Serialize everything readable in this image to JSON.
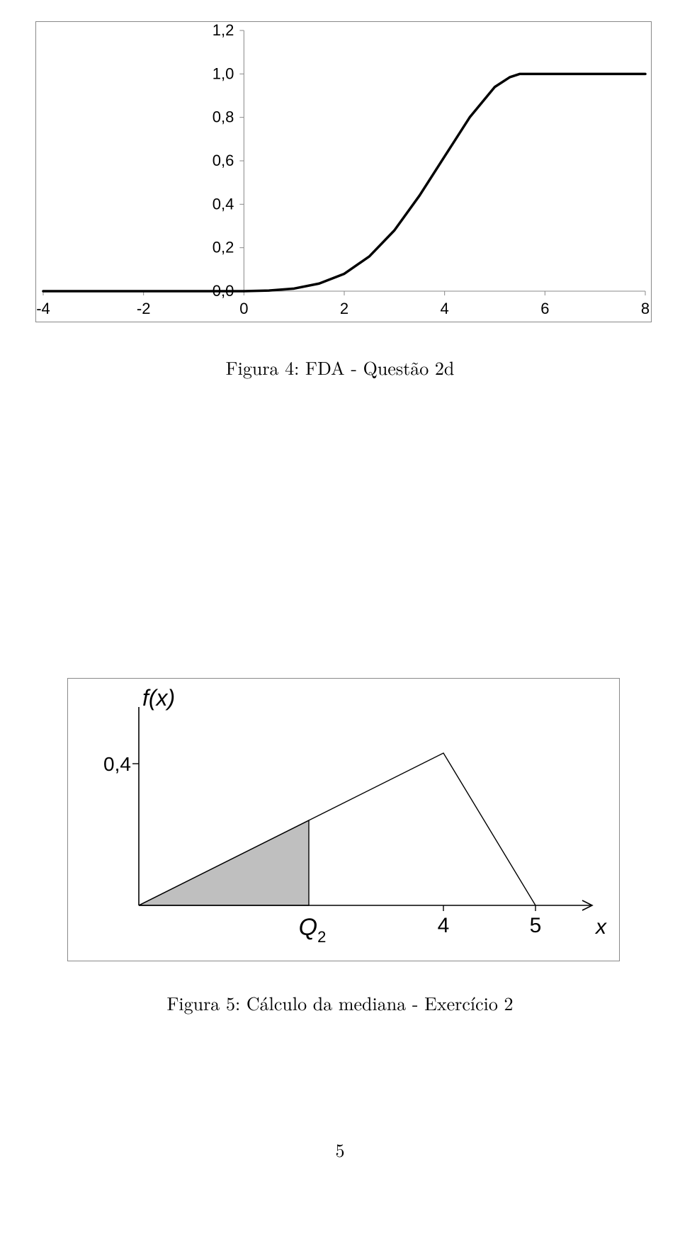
{
  "fig4": {
    "type": "line",
    "x_ticks": [
      "-4",
      "-2",
      "0",
      "2",
      "4",
      "6",
      "8"
    ],
    "y_ticks": [
      "0,0",
      "0,2",
      "0,4",
      "0,6",
      "0,8",
      "1,0",
      "1,2"
    ],
    "xlim": [
      -4,
      8
    ],
    "ylim": [
      0,
      1.2
    ],
    "x_tick_positions": [
      -4,
      -2,
      0,
      2,
      4,
      6,
      8
    ],
    "y_tick_positions": [
      0,
      0.2,
      0.4,
      0.6,
      0.8,
      1.0,
      1.2
    ],
    "zero_axis_x": 0,
    "line_color": "#000000",
    "line_width": 3.5,
    "axis_color": "#888888",
    "border_color": "#888888",
    "tick_font_size": 22,
    "curve_points": [
      [
        -4,
        0
      ],
      [
        -2,
        0
      ],
      [
        -1,
        0
      ],
      [
        0,
        0
      ],
      [
        0.5,
        0.003
      ],
      [
        1.0,
        0.012
      ],
      [
        1.5,
        0.035
      ],
      [
        2.0,
        0.08
      ],
      [
        2.5,
        0.16
      ],
      [
        3.0,
        0.28
      ],
      [
        3.5,
        0.44
      ],
      [
        4.0,
        0.62
      ],
      [
        4.5,
        0.8
      ],
      [
        5.0,
        0.94
      ],
      [
        5.3,
        0.985
      ],
      [
        5.5,
        1.0
      ],
      [
        6.0,
        1.0
      ],
      [
        8.0,
        1.0
      ]
    ],
    "caption": "Figura 4: FDA - Questão 2d"
  },
  "fig5": {
    "type": "diagram",
    "y_axis_label": "f(x)",
    "y_tick_label": "0,4",
    "x_axis_label": "x",
    "x_ticks": [
      "4",
      "5"
    ],
    "q2_label_html": "Q<sub>2</sub>",
    "shaded_fill": "#bfbfbf",
    "line_color": "#000000",
    "line_width": 1.4,
    "border_color": "#888888",
    "label_font_size": 30,
    "tick_font_size": 28,
    "caption": "Figura 5: Cálculo da mediana - Exercício 2"
  },
  "page_number": "5"
}
